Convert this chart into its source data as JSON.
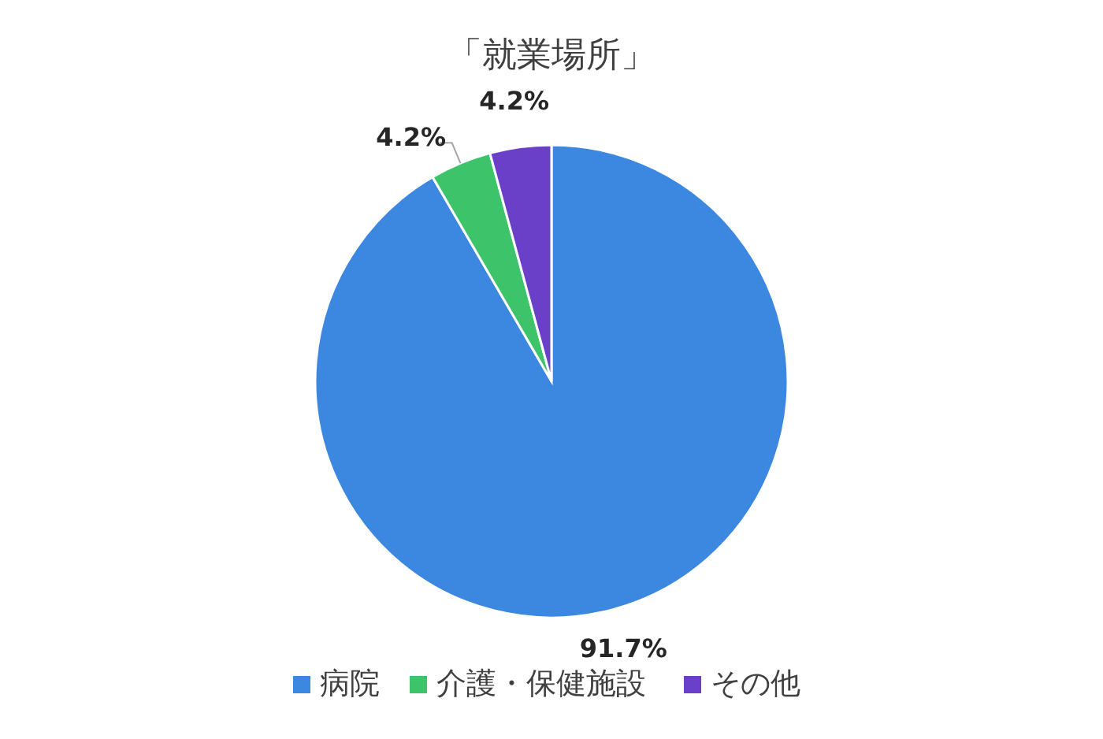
{
  "chart_data": {
    "type": "pie",
    "title": "「就業場所」",
    "categories": [
      "病院",
      "介護・保健施設",
      "その他"
    ],
    "values": [
      91.7,
      4.2,
      4.2
    ],
    "colors": [
      "#3c87e0",
      "#3dc46b",
      "#6a40c8"
    ],
    "value_labels": [
      "91.7%",
      "4.2%",
      "4.2%"
    ],
    "legend": "bottom"
  }
}
